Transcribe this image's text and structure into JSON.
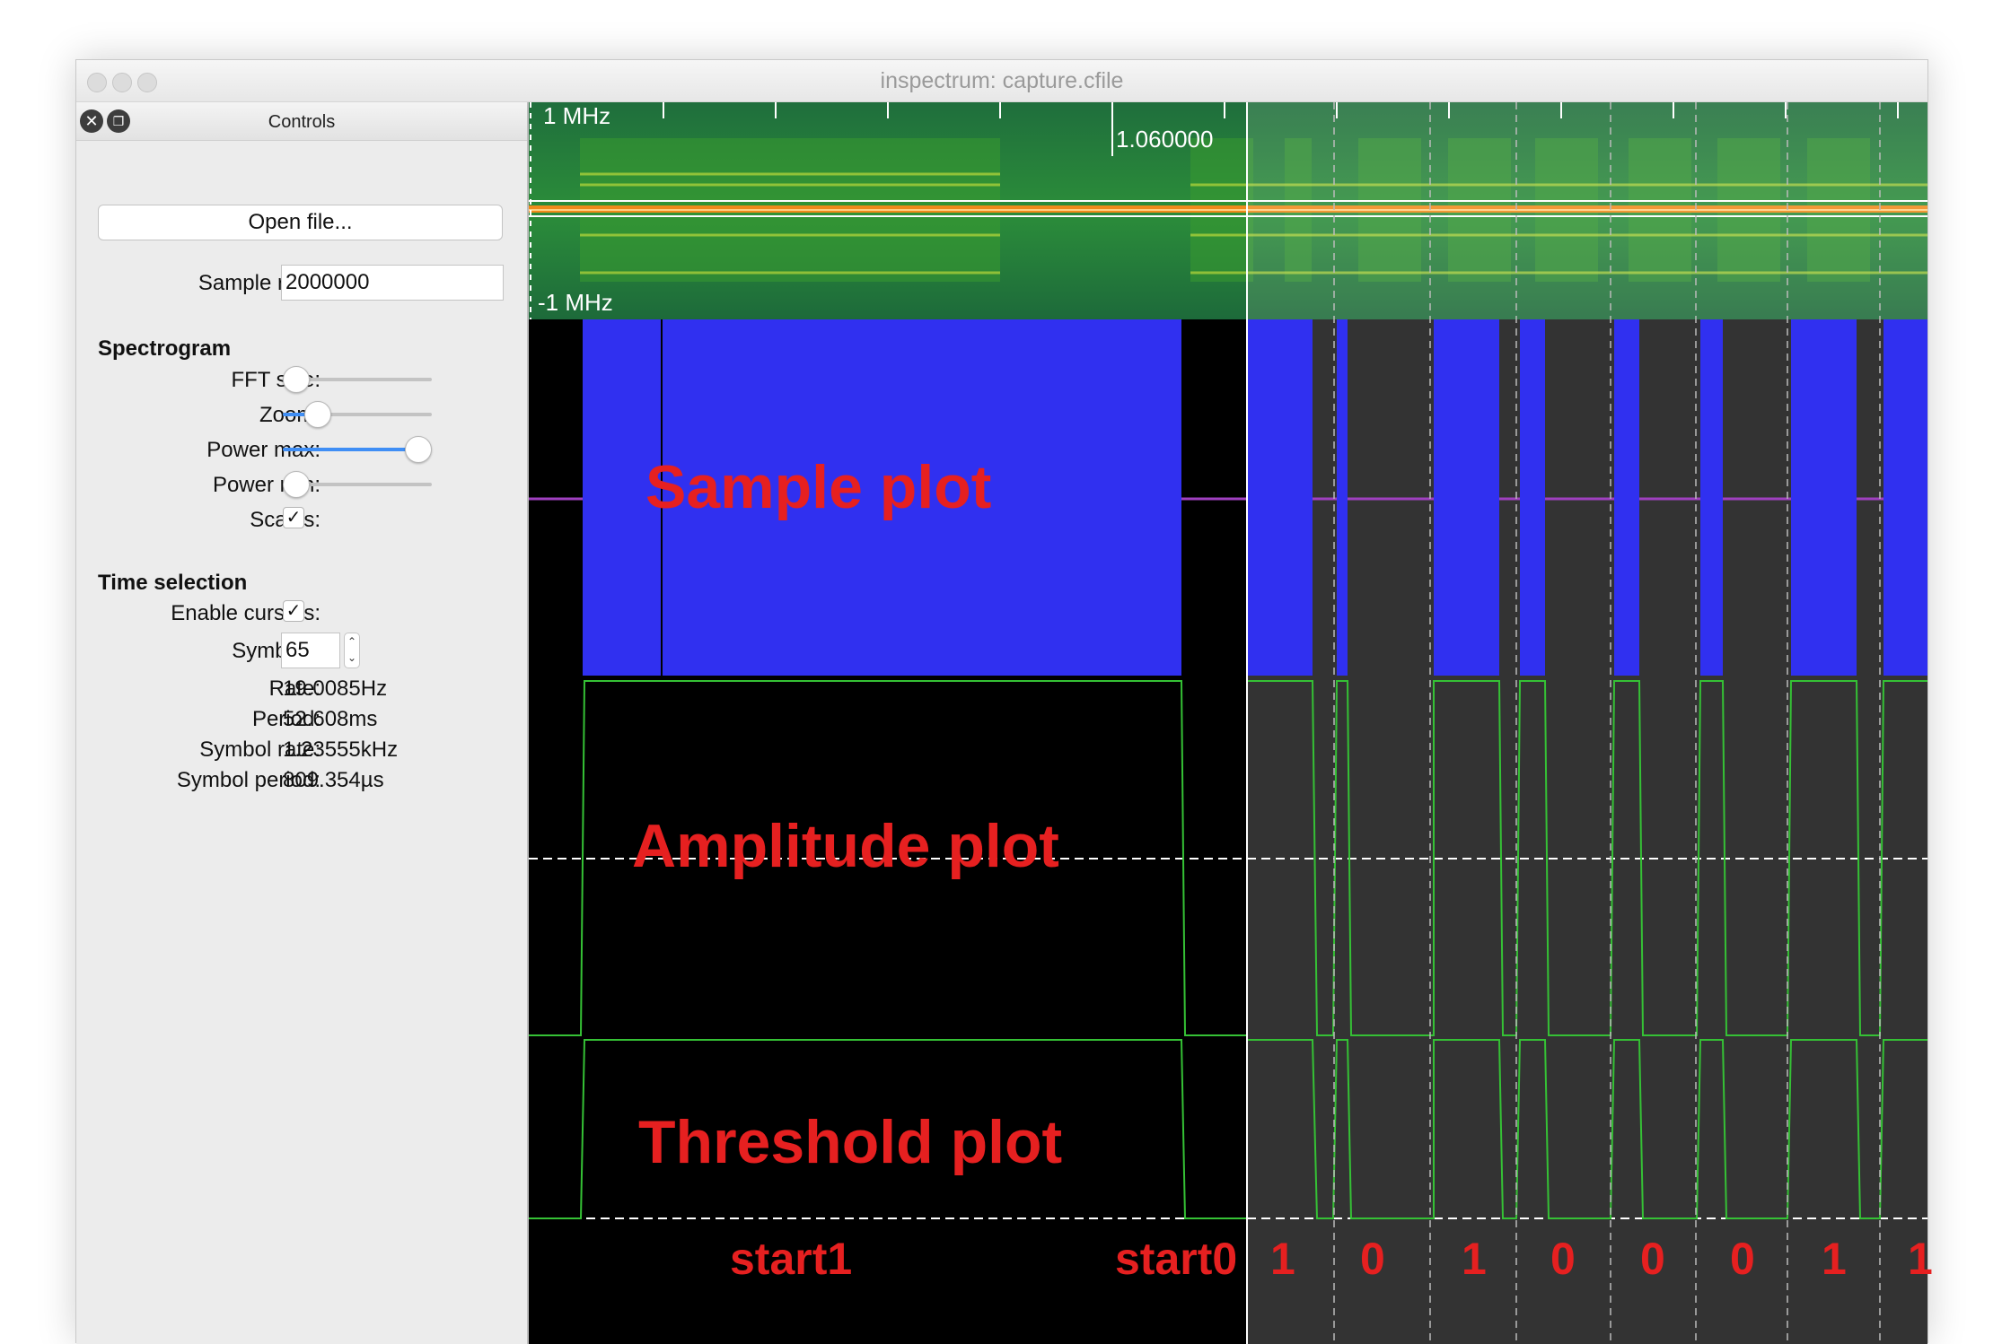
{
  "window": {
    "title": "inspectrum: capture.cfile"
  },
  "dock": {
    "title": "Controls",
    "close_icon": "close-icon",
    "float_icon": "float-icon",
    "open_file_label": "Open file...",
    "sample_rate": {
      "label": "Sample rate:",
      "value": "2000000"
    },
    "spectrogram": {
      "heading": "Spectrogram",
      "fft_size": {
        "label": "FFT size:",
        "level": 0.0
      },
      "zoom": {
        "label": "Zoom:",
        "level": 0.15
      },
      "power_max": {
        "label": "Power max:",
        "level": 1.0
      },
      "power_min": {
        "label": "Power min:",
        "level": 0.0
      },
      "scales": {
        "label": "Scales:",
        "checked": true,
        "mark": "✓"
      }
    },
    "time_selection": {
      "heading": "Time selection",
      "enable_cursors": {
        "label": "Enable cursors:",
        "checked": true,
        "mark": "✓"
      },
      "symbols": {
        "label": "Symbols:",
        "value": "65"
      },
      "rate": {
        "label": "Rate:",
        "value": "19.0085Hz"
      },
      "period": {
        "label": "Period:",
        "value": "52.608ms"
      },
      "symbol_rate": {
        "label": "Symbol rate:",
        "value": "1.23555kHz"
      },
      "symbol_period": {
        "label": "Symbol period:",
        "value": "809.354µs"
      }
    }
  },
  "plot": {
    "freq_top_label": "1 MHz",
    "freq_bottom_label": "-1 MHz",
    "time_label": "1.060000",
    "annotations": {
      "sample": "Sample plot",
      "amplitude": "Amplitude plot",
      "threshold": "Threshold plot"
    },
    "markers": {
      "start1": "start1",
      "start0": "start0",
      "bits": [
        "1",
        "0",
        "1",
        "0",
        "0",
        "0",
        "1",
        "1"
      ]
    },
    "colors": {
      "sample_fill": "#3030f0",
      "trace": "#35c135",
      "selection_bg": "#333333",
      "annotation": "#e62020"
    }
  }
}
